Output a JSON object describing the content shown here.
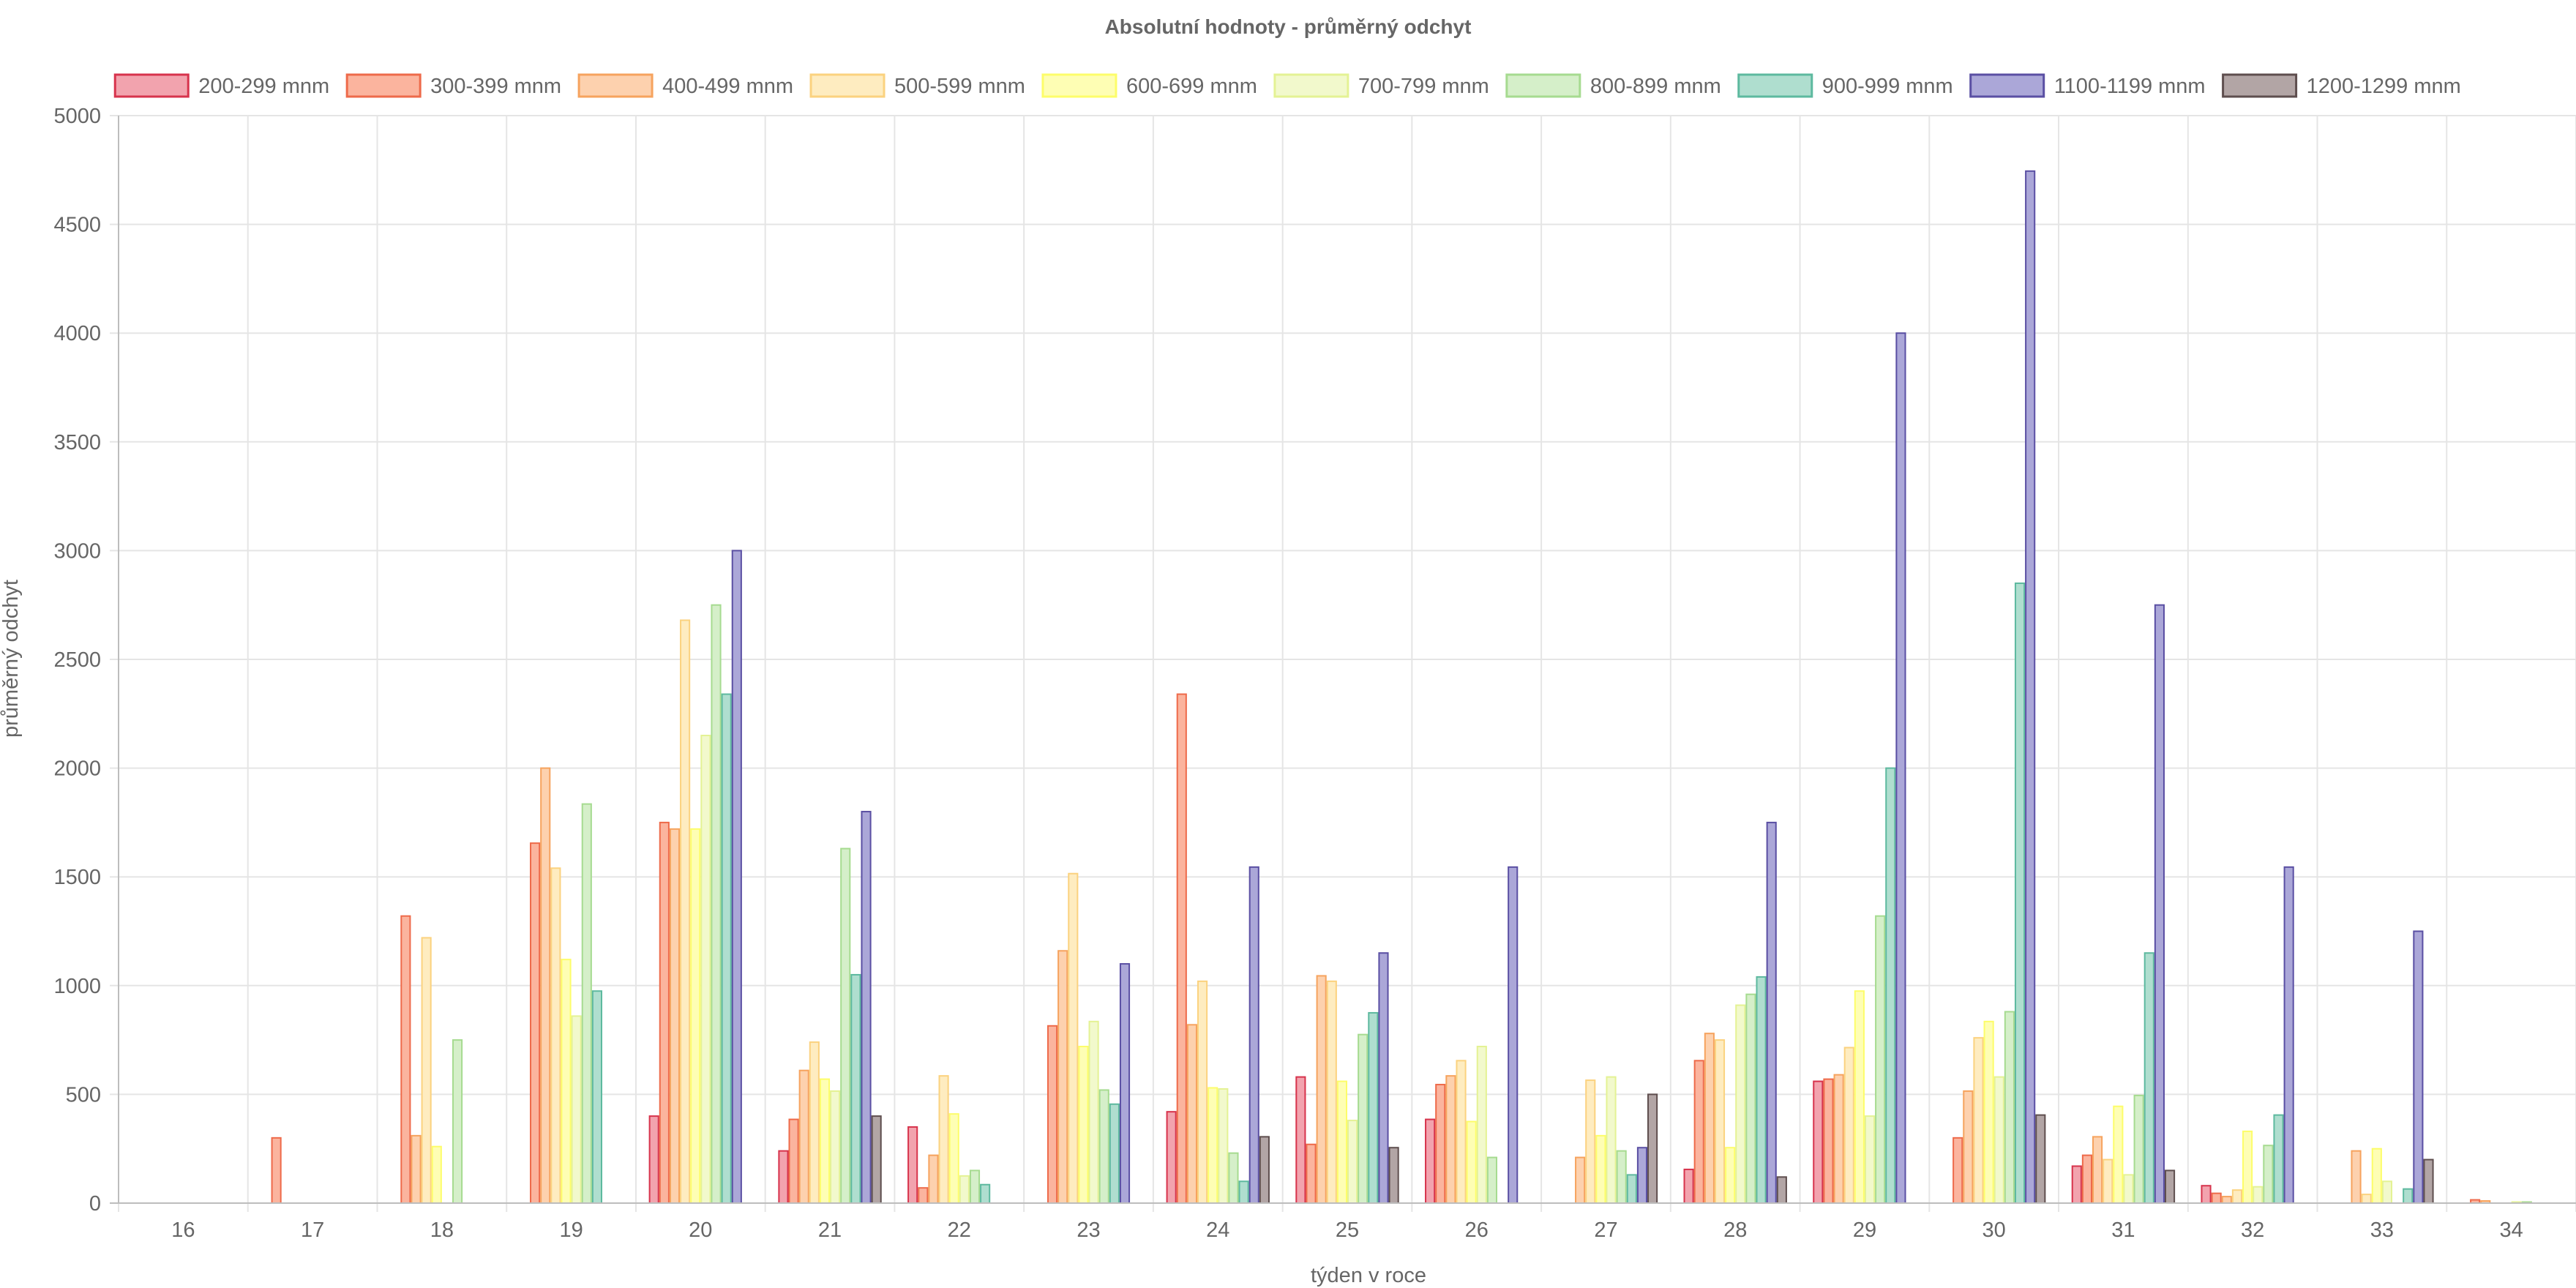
{
  "chart_data": {
    "type": "bar",
    "title": "Absolutní hodnoty - průměrný odchyt",
    "xlabel": "týden v roce",
    "ylabel": "průměrný odchyt",
    "ylim": [
      0,
      5000
    ],
    "yticks": [
      0,
      500,
      1000,
      1500,
      2000,
      2500,
      3000,
      3500,
      4000,
      4500,
      5000
    ],
    "grid": true,
    "legend_position": "top",
    "categories": [
      "16",
      "17",
      "18",
      "19",
      "20",
      "21",
      "22",
      "23",
      "24",
      "25",
      "26",
      "27",
      "28",
      "29",
      "30",
      "31",
      "32",
      "33",
      "34"
    ],
    "series": [
      {
        "name": "200-299 mnm",
        "fill": "#f2a3ae",
        "stroke": "#d7334c",
        "values": [
          0,
          0,
          0,
          0,
          400,
          240,
          350,
          0,
          420,
          580,
          385,
          0,
          155,
          560,
          0,
          170,
          80,
          0,
          0
        ]
      },
      {
        "name": "300-399 mnm",
        "fill": "#fbb49e",
        "stroke": "#ee6a4a",
        "values": [
          0,
          300,
          1320,
          1655,
          1750,
          385,
          70,
          815,
          2340,
          270,
          545,
          0,
          655,
          570,
          300,
          220,
          45,
          0,
          15
        ]
      },
      {
        "name": "400-499 mnm",
        "fill": "#fdd1ae",
        "stroke": "#f6a35e",
        "values": [
          0,
          0,
          310,
          2000,
          1720,
          610,
          220,
          1160,
          820,
          1045,
          585,
          210,
          780,
          590,
          515,
          305,
          30,
          240,
          10
        ]
      },
      {
        "name": "500-599 mnm",
        "fill": "#feecc0",
        "stroke": "#fbd27f",
        "values": [
          0,
          0,
          1220,
          1540,
          2680,
          740,
          585,
          1515,
          1020,
          1020,
          655,
          565,
          750,
          715,
          760,
          200,
          60,
          40,
          0
        ]
      },
      {
        "name": "600-699 mnm",
        "fill": "#fefeb4",
        "stroke": "#fdfd6a",
        "values": [
          0,
          0,
          260,
          1120,
          1720,
          570,
          410,
          720,
          530,
          560,
          375,
          310,
          255,
          975,
          835,
          445,
          330,
          250,
          0
        ]
      },
      {
        "name": "700-799 mnm",
        "fill": "#f2f9cc",
        "stroke": "#e4f294",
        "values": [
          0,
          0,
          0,
          860,
          2150,
          515,
          125,
          835,
          525,
          380,
          720,
          580,
          910,
          400,
          580,
          130,
          75,
          100,
          5
        ]
      },
      {
        "name": "800-899 mnm",
        "fill": "#d5efc9",
        "stroke": "#a6db90",
        "values": [
          0,
          0,
          750,
          1835,
          2750,
          1630,
          150,
          520,
          230,
          775,
          210,
          240,
          960,
          1320,
          880,
          495,
          265,
          0,
          5
        ]
      },
      {
        "name": "900-999 mnm",
        "fill": "#afdecf",
        "stroke": "#5db99f",
        "values": [
          0,
          0,
          0,
          975,
          2340,
          1050,
          85,
          455,
          100,
          875,
          0,
          130,
          1040,
          2000,
          2850,
          1150,
          405,
          65,
          0
        ]
      },
      {
        "name": "1100-1199 mnm",
        "fill": "#aba7d8",
        "stroke": "#5a4fa3",
        "values": [
          0,
          0,
          0,
          0,
          3000,
          1800,
          0,
          1100,
          1545,
          1150,
          1545,
          255,
          1750,
          4000,
          4745,
          2750,
          1545,
          1250,
          0
        ]
      },
      {
        "name": "1200-1299 mnm",
        "fill": "#b2a5a5",
        "stroke": "#5e4e4e",
        "values": [
          0,
          0,
          0,
          0,
          0,
          400,
          0,
          0,
          305,
          255,
          0,
          500,
          120,
          0,
          405,
          150,
          0,
          200,
          0
        ]
      }
    ]
  }
}
